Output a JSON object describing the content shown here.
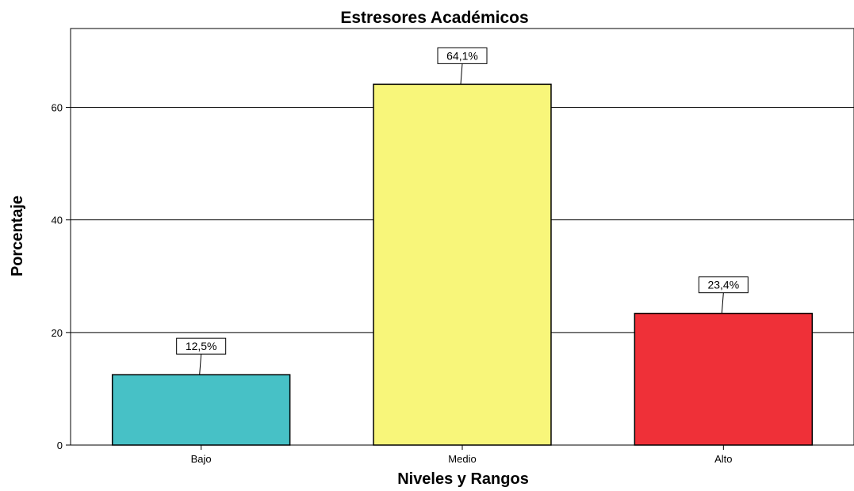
{
  "chart_data": {
    "type": "bar",
    "title": "Estresores Académicos",
    "xlabel": "Niveles y Rangos",
    "ylabel": "Porcentaje",
    "categories": [
      "Bajo",
      "Medio",
      "Alto"
    ],
    "values": [
      12.5,
      64.1,
      23.4
    ],
    "data_labels": [
      "12,5%",
      "64,1%",
      "23,4%"
    ],
    "colors": [
      "#47c1c6",
      "#f8f67a",
      "#ef3038"
    ],
    "ylim": [
      0,
      74
    ],
    "yticks": [
      0,
      20,
      40,
      60
    ],
    "ytick_labels": [
      "0",
      "20",
      "40",
      "60"
    ],
    "grid": true
  }
}
